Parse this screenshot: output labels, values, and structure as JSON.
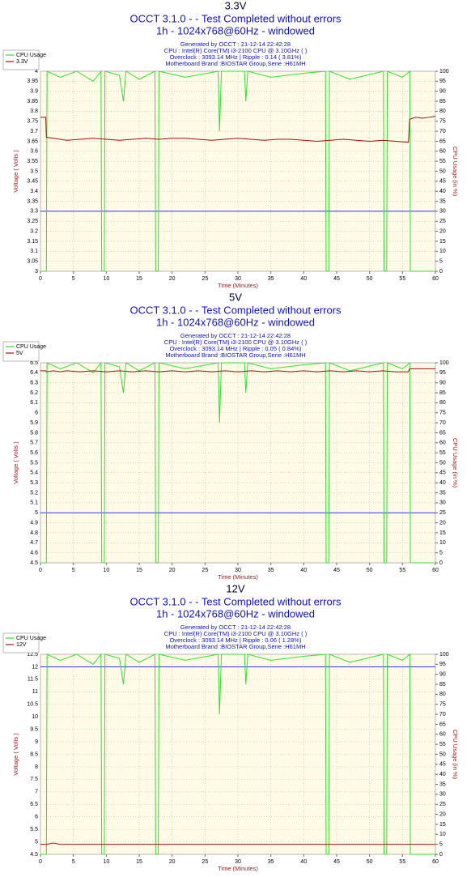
{
  "chart_data": [
    {
      "type": "line",
      "title": "3.3V",
      "subtitle": [
        "OCCT 3.1.0 -  - Test Completed without errors",
        "1h - 1024x768@60Hz - windowed"
      ],
      "info": [
        "Generated by OCCT : 21-12-14 22:42:28",
        "CPU : Intel(R) Core(TM) i3-2100 CPU @ 3.10GHz (  )",
        "Overclock : 3093.14 MHz | Ripple : 0.14 ( 3.81%)",
        "Motherboard Brand :BIOSTAR Group,Serie :H61MH"
      ],
      "xlabel": "Time (Minutes)",
      "ylabel": "Voltage ( Volts )",
      "y2label": "CPU Usage (in %)",
      "xlim": [
        0,
        60
      ],
      "xticks": [
        0,
        5,
        10,
        15,
        20,
        25,
        30,
        35,
        40,
        45,
        50,
        55,
        60
      ],
      "ylim": [
        3,
        4
      ],
      "yticks": [
        3,
        3.05,
        3.1,
        3.15,
        3.2,
        3.25,
        3.3,
        3.35,
        3.4,
        3.45,
        3.5,
        3.55,
        3.6,
        3.65,
        3.7,
        3.75,
        3.8,
        3.85,
        3.9,
        3.95,
        4
      ],
      "y2lim": [
        0,
        100
      ],
      "y2ticks": [
        0,
        5,
        10,
        15,
        20,
        25,
        30,
        35,
        40,
        45,
        50,
        55,
        60,
        65,
        70,
        75,
        80,
        85,
        90,
        95,
        100
      ],
      "grid": true,
      "hline": {
        "value": 3.3,
        "color": "#3030ff"
      },
      "series": [
        {
          "name": "CPU Usage",
          "color": "#33dd33",
          "axis": "y2",
          "x": [
            0,
            0.9,
            1.0,
            3,
            5.5,
            8,
            9.2,
            9.3,
            9.7,
            9.8,
            12,
            12.6,
            13,
            15,
            17.4,
            17.5,
            17.9,
            18,
            22,
            27,
            27.2,
            27.5,
            31,
            31.2,
            31.5,
            35,
            40,
            43.3,
            43.4,
            43.8,
            43.9,
            47,
            52.1,
            52.2,
            52.6,
            52.7,
            55,
            56.1,
            56.2,
            60
          ],
          "values": [
            0,
            0,
            100,
            97,
            100,
            95,
            100,
            0,
            0,
            100,
            98,
            85,
            100,
            96,
            100,
            0,
            0,
            100,
            97,
            100,
            70,
            100,
            100,
            85,
            100,
            97,
            99,
            100,
            0,
            0,
            100,
            96,
            100,
            0,
            0,
            100,
            97,
            100,
            0,
            0
          ]
        },
        {
          "name": "3.3V",
          "color": "#a01010",
          "x": [
            0,
            0.8,
            0.9,
            2,
            3,
            4,
            6,
            8,
            10,
            12,
            14,
            16,
            18,
            20,
            22,
            24,
            26,
            28,
            30,
            32,
            34,
            36,
            38,
            40,
            42,
            44,
            46,
            48,
            50,
            52,
            54,
            55.9,
            56.1,
            57,
            58,
            59,
            60
          ],
          "values": [
            3.77,
            3.77,
            3.67,
            3.665,
            3.66,
            3.655,
            3.66,
            3.665,
            3.66,
            3.655,
            3.66,
            3.665,
            3.66,
            3.665,
            3.665,
            3.66,
            3.655,
            3.66,
            3.665,
            3.66,
            3.655,
            3.66,
            3.66,
            3.655,
            3.65,
            3.655,
            3.66,
            3.655,
            3.65,
            3.655,
            3.65,
            3.645,
            3.76,
            3.77,
            3.765,
            3.77,
            3.775
          ]
        }
      ]
    },
    {
      "type": "line",
      "title": "5V",
      "subtitle": [
        "OCCT 3.1.0 -  - Test Completed without errors",
        "1h - 1024x768@60Hz - windowed"
      ],
      "info": [
        "Generated by OCCT : 21-12-14 22:42:28",
        "CPU : Intel(R) Core(TM) i3-2100 CPU @ 3.10GHz (  )",
        "Overclock : 3093.14 MHz | Ripple : 0.05 ( 0.84%)",
        "Motherboard Brand :BIOSTAR Group,Serie :H61MH"
      ],
      "xlabel": "Time (Minutes)",
      "ylabel": "Voltage ( Volts )",
      "y2label": "CPU Usage (in %)",
      "xlim": [
        0,
        60
      ],
      "xticks": [
        0,
        5,
        10,
        15,
        20,
        25,
        30,
        35,
        40,
        45,
        50,
        55,
        60
      ],
      "ylim": [
        4.5,
        6.5
      ],
      "yticks": [
        4.5,
        4.6,
        4.7,
        4.8,
        4.9,
        5,
        5.1,
        5.2,
        5.3,
        5.4,
        5.5,
        5.6,
        5.7,
        5.8,
        5.9,
        6,
        6.1,
        6.2,
        6.3,
        6.4,
        6.5
      ],
      "y2lim": [
        0,
        100
      ],
      "y2ticks": [
        0,
        5,
        10,
        15,
        20,
        25,
        30,
        35,
        40,
        45,
        50,
        55,
        60,
        65,
        70,
        75,
        80,
        85,
        90,
        95,
        100
      ],
      "grid": true,
      "hline": {
        "value": 5,
        "color": "#3030ff"
      },
      "series": [
        {
          "name": "CPU Usage",
          "color": "#33dd33",
          "axis": "y2",
          "x": [
            0,
            0.9,
            1.0,
            3,
            5.5,
            8,
            9.2,
            9.3,
            9.7,
            9.8,
            12,
            12.6,
            13,
            15,
            17.4,
            17.5,
            17.9,
            18,
            22,
            27,
            27.2,
            27.5,
            31,
            31.2,
            31.5,
            35,
            40,
            43.3,
            43.4,
            43.8,
            43.9,
            47,
            52.1,
            52.2,
            52.6,
            52.7,
            55,
            56.1,
            56.2,
            60
          ],
          "values": [
            0,
            0,
            100,
            97,
            100,
            95,
            100,
            0,
            0,
            100,
            98,
            85,
            100,
            96,
            100,
            0,
            0,
            100,
            97,
            100,
            70,
            100,
            100,
            85,
            100,
            97,
            99,
            100,
            0,
            0,
            100,
            96,
            100,
            0,
            0,
            100,
            97,
            100,
            0,
            0
          ]
        },
        {
          "name": "5V",
          "color": "#a01010",
          "x": [
            0,
            0.8,
            0.9,
            2,
            3,
            4,
            6,
            8,
            10,
            12,
            14,
            16,
            18,
            20,
            22,
            24,
            26,
            28,
            30,
            32,
            34,
            36,
            38,
            40,
            42,
            44,
            46,
            48,
            50,
            52,
            54,
            55.9,
            56.1,
            57,
            58,
            59,
            60
          ],
          "values": [
            6.42,
            6.42,
            6.41,
            6.42,
            6.41,
            6.42,
            6.41,
            6.42,
            6.41,
            6.42,
            6.41,
            6.42,
            6.41,
            6.42,
            6.41,
            6.42,
            6.41,
            6.42,
            6.41,
            6.42,
            6.41,
            6.42,
            6.41,
            6.42,
            6.41,
            6.42,
            6.41,
            6.42,
            6.41,
            6.42,
            6.41,
            6.41,
            6.44,
            6.44,
            6.44,
            6.44,
            6.44
          ]
        }
      ]
    },
    {
      "type": "line",
      "title": "12V",
      "subtitle": [
        "OCCT 3.1.0 -  - Test Completed without errors",
        "1h - 1024x768@60Hz - windowed"
      ],
      "info": [
        "Generated by OCCT : 21-12-14 22:42:28",
        "CPU : Intel(R) Core(TM) i3-2100 CPU @ 3.10GHz (  )",
        "Overclock : 3093.14 MHz | Ripple : 0.06 ( 1.28%)",
        "Motherboard Brand :BIOSTAR Group,Serie :H61MH"
      ],
      "xlabel": "Time (Minutes)",
      "ylabel": "Voltage ( Volts )",
      "y2label": "CPU Usage (in %)",
      "xlim": [
        0,
        60
      ],
      "xticks": [
        0,
        5,
        10,
        15,
        20,
        25,
        30,
        35,
        40,
        45,
        50,
        55,
        60
      ],
      "ylim": [
        4.5,
        12.5
      ],
      "yticks": [
        4.5,
        5,
        5.5,
        6,
        6.5,
        7,
        7.5,
        8,
        8.5,
        9,
        9.5,
        10,
        10.5,
        11,
        11.5,
        12,
        12.5
      ],
      "y2lim": [
        0,
        100
      ],
      "y2ticks": [
        0,
        5,
        10,
        15,
        20,
        25,
        30,
        35,
        40,
        45,
        50,
        55,
        60,
        65,
        70,
        75,
        80,
        85,
        90,
        95,
        100
      ],
      "grid": true,
      "hline": {
        "value": 12,
        "color": "#3030ff"
      },
      "series": [
        {
          "name": "CPU Usage",
          "color": "#33dd33",
          "axis": "y2",
          "x": [
            0,
            0.9,
            1.0,
            3,
            5.5,
            8,
            9.2,
            9.3,
            9.7,
            9.8,
            12,
            12.6,
            13,
            15,
            17.4,
            17.5,
            17.9,
            18,
            22,
            27,
            27.2,
            27.5,
            31,
            31.2,
            31.5,
            35,
            40,
            43.3,
            43.4,
            43.8,
            43.9,
            47,
            52.1,
            52.2,
            52.6,
            52.7,
            55,
            56.1,
            56.2,
            60
          ],
          "values": [
            0,
            0,
            100,
            97,
            100,
            95,
            100,
            0,
            0,
            100,
            98,
            85,
            100,
            96,
            100,
            0,
            0,
            100,
            97,
            100,
            70,
            100,
            100,
            85,
            100,
            97,
            99,
            100,
            0,
            0,
            100,
            96,
            100,
            0,
            0,
            100,
            97,
            100,
            0,
            0
          ]
        },
        {
          "name": "12V",
          "color": "#a01010",
          "x": [
            0,
            0.8,
            0.9,
            2,
            3,
            4,
            6,
            8,
            10,
            12,
            14,
            16,
            18,
            20,
            22,
            24,
            26,
            28,
            30,
            32,
            34,
            36,
            38,
            40,
            42,
            44,
            46,
            48,
            50,
            52,
            54,
            55.9,
            56.1,
            57,
            58,
            59,
            60
          ],
          "values": [
            4.9,
            4.9,
            4.9,
            4.95,
            4.9,
            4.9,
            4.9,
            4.9,
            4.9,
            4.9,
            4.9,
            4.9,
            4.9,
            4.9,
            4.9,
            4.9,
            4.9,
            4.9,
            4.9,
            4.9,
            4.9,
            4.9,
            4.9,
            4.9,
            4.9,
            4.9,
            4.9,
            4.9,
            4.9,
            4.9,
            4.9,
            4.9,
            4.9,
            4.9,
            4.9,
            4.9,
            4.9
          ]
        }
      ]
    }
  ]
}
